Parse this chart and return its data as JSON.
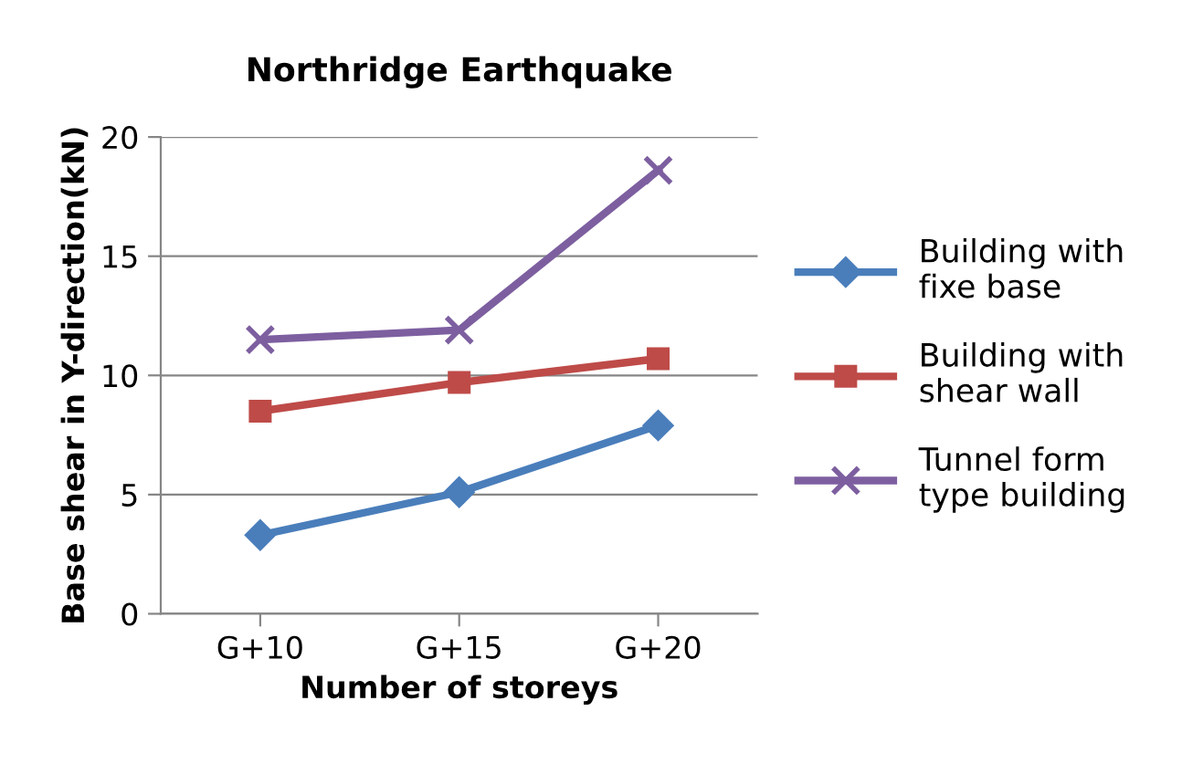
{
  "chart_data": {
    "type": "line",
    "title": "Northridge Earthquake",
    "xlabel": "Number of storeys",
    "ylabel": "Base shear in Y-direction(kN)",
    "categories": [
      "G+10",
      "G+15",
      "G+20"
    ],
    "series": [
      {
        "name": "Building with\nfixe base",
        "color": "#4a7ebb",
        "marker": "diamond",
        "values": [
          3.3,
          5.1,
          7.9
        ]
      },
      {
        "name": "Building with\nshear wall",
        "color": "#be4b48",
        "marker": "square",
        "values": [
          8.5,
          9.7,
          10.7
        ]
      },
      {
        "name": "Tunnel form\ntype building",
        "color": "#7d5fa0",
        "marker": "cross",
        "values": [
          11.5,
          11.9,
          18.6
        ]
      }
    ],
    "ylim": [
      0,
      20
    ],
    "yticks": [
      0,
      5,
      10,
      15,
      20
    ],
    "grid": "y",
    "legend": "right",
    "line_style": "solid"
  }
}
